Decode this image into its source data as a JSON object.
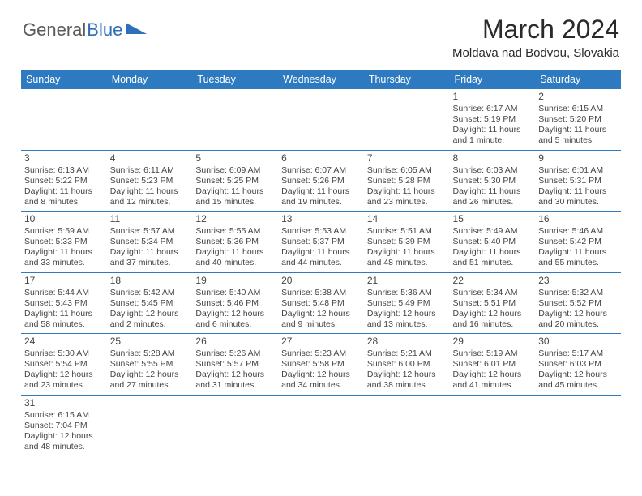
{
  "logo": {
    "text1": "General",
    "text2": "Blue",
    "pennant_color": "#2d6fb8",
    "text1_color": "#5a5a5a"
  },
  "header": {
    "title": "March 2024",
    "location": "Moldava nad Bodvou, Slovakia"
  },
  "colors": {
    "header_bg": "#2d7ac0",
    "header_fg": "#ffffff",
    "body_text": "#444444",
    "rule": "#2d7ac0",
    "page_bg": "#ffffff"
  },
  "day_names": [
    "Sunday",
    "Monday",
    "Tuesday",
    "Wednesday",
    "Thursday",
    "Friday",
    "Saturday"
  ],
  "weeks": [
    [
      null,
      null,
      null,
      null,
      null,
      {
        "n": "1",
        "sunrise": "Sunrise: 6:17 AM",
        "sunset": "Sunset: 5:19 PM",
        "day": "Daylight: 11 hours and 1 minute."
      },
      {
        "n": "2",
        "sunrise": "Sunrise: 6:15 AM",
        "sunset": "Sunset: 5:20 PM",
        "day": "Daylight: 11 hours and 5 minutes."
      }
    ],
    [
      {
        "n": "3",
        "sunrise": "Sunrise: 6:13 AM",
        "sunset": "Sunset: 5:22 PM",
        "day": "Daylight: 11 hours and 8 minutes."
      },
      {
        "n": "4",
        "sunrise": "Sunrise: 6:11 AM",
        "sunset": "Sunset: 5:23 PM",
        "day": "Daylight: 11 hours and 12 minutes."
      },
      {
        "n": "5",
        "sunrise": "Sunrise: 6:09 AM",
        "sunset": "Sunset: 5:25 PM",
        "day": "Daylight: 11 hours and 15 minutes."
      },
      {
        "n": "6",
        "sunrise": "Sunrise: 6:07 AM",
        "sunset": "Sunset: 5:26 PM",
        "day": "Daylight: 11 hours and 19 minutes."
      },
      {
        "n": "7",
        "sunrise": "Sunrise: 6:05 AM",
        "sunset": "Sunset: 5:28 PM",
        "day": "Daylight: 11 hours and 23 minutes."
      },
      {
        "n": "8",
        "sunrise": "Sunrise: 6:03 AM",
        "sunset": "Sunset: 5:30 PM",
        "day": "Daylight: 11 hours and 26 minutes."
      },
      {
        "n": "9",
        "sunrise": "Sunrise: 6:01 AM",
        "sunset": "Sunset: 5:31 PM",
        "day": "Daylight: 11 hours and 30 minutes."
      }
    ],
    [
      {
        "n": "10",
        "sunrise": "Sunrise: 5:59 AM",
        "sunset": "Sunset: 5:33 PM",
        "day": "Daylight: 11 hours and 33 minutes."
      },
      {
        "n": "11",
        "sunrise": "Sunrise: 5:57 AM",
        "sunset": "Sunset: 5:34 PM",
        "day": "Daylight: 11 hours and 37 minutes."
      },
      {
        "n": "12",
        "sunrise": "Sunrise: 5:55 AM",
        "sunset": "Sunset: 5:36 PM",
        "day": "Daylight: 11 hours and 40 minutes."
      },
      {
        "n": "13",
        "sunrise": "Sunrise: 5:53 AM",
        "sunset": "Sunset: 5:37 PM",
        "day": "Daylight: 11 hours and 44 minutes."
      },
      {
        "n": "14",
        "sunrise": "Sunrise: 5:51 AM",
        "sunset": "Sunset: 5:39 PM",
        "day": "Daylight: 11 hours and 48 minutes."
      },
      {
        "n": "15",
        "sunrise": "Sunrise: 5:49 AM",
        "sunset": "Sunset: 5:40 PM",
        "day": "Daylight: 11 hours and 51 minutes."
      },
      {
        "n": "16",
        "sunrise": "Sunrise: 5:46 AM",
        "sunset": "Sunset: 5:42 PM",
        "day": "Daylight: 11 hours and 55 minutes."
      }
    ],
    [
      {
        "n": "17",
        "sunrise": "Sunrise: 5:44 AM",
        "sunset": "Sunset: 5:43 PM",
        "day": "Daylight: 11 hours and 58 minutes."
      },
      {
        "n": "18",
        "sunrise": "Sunrise: 5:42 AM",
        "sunset": "Sunset: 5:45 PM",
        "day": "Daylight: 12 hours and 2 minutes."
      },
      {
        "n": "19",
        "sunrise": "Sunrise: 5:40 AM",
        "sunset": "Sunset: 5:46 PM",
        "day": "Daylight: 12 hours and 6 minutes."
      },
      {
        "n": "20",
        "sunrise": "Sunrise: 5:38 AM",
        "sunset": "Sunset: 5:48 PM",
        "day": "Daylight: 12 hours and 9 minutes."
      },
      {
        "n": "21",
        "sunrise": "Sunrise: 5:36 AM",
        "sunset": "Sunset: 5:49 PM",
        "day": "Daylight: 12 hours and 13 minutes."
      },
      {
        "n": "22",
        "sunrise": "Sunrise: 5:34 AM",
        "sunset": "Sunset: 5:51 PM",
        "day": "Daylight: 12 hours and 16 minutes."
      },
      {
        "n": "23",
        "sunrise": "Sunrise: 5:32 AM",
        "sunset": "Sunset: 5:52 PM",
        "day": "Daylight: 12 hours and 20 minutes."
      }
    ],
    [
      {
        "n": "24",
        "sunrise": "Sunrise: 5:30 AM",
        "sunset": "Sunset: 5:54 PM",
        "day": "Daylight: 12 hours and 23 minutes."
      },
      {
        "n": "25",
        "sunrise": "Sunrise: 5:28 AM",
        "sunset": "Sunset: 5:55 PM",
        "day": "Daylight: 12 hours and 27 minutes."
      },
      {
        "n": "26",
        "sunrise": "Sunrise: 5:26 AM",
        "sunset": "Sunset: 5:57 PM",
        "day": "Daylight: 12 hours and 31 minutes."
      },
      {
        "n": "27",
        "sunrise": "Sunrise: 5:23 AM",
        "sunset": "Sunset: 5:58 PM",
        "day": "Daylight: 12 hours and 34 minutes."
      },
      {
        "n": "28",
        "sunrise": "Sunrise: 5:21 AM",
        "sunset": "Sunset: 6:00 PM",
        "day": "Daylight: 12 hours and 38 minutes."
      },
      {
        "n": "29",
        "sunrise": "Sunrise: 5:19 AM",
        "sunset": "Sunset: 6:01 PM",
        "day": "Daylight: 12 hours and 41 minutes."
      },
      {
        "n": "30",
        "sunrise": "Sunrise: 5:17 AM",
        "sunset": "Sunset: 6:03 PM",
        "day": "Daylight: 12 hours and 45 minutes."
      }
    ],
    [
      {
        "n": "31",
        "sunrise": "Sunrise: 6:15 AM",
        "sunset": "Sunset: 7:04 PM",
        "day": "Daylight: 12 hours and 48 minutes."
      },
      null,
      null,
      null,
      null,
      null,
      null
    ]
  ]
}
